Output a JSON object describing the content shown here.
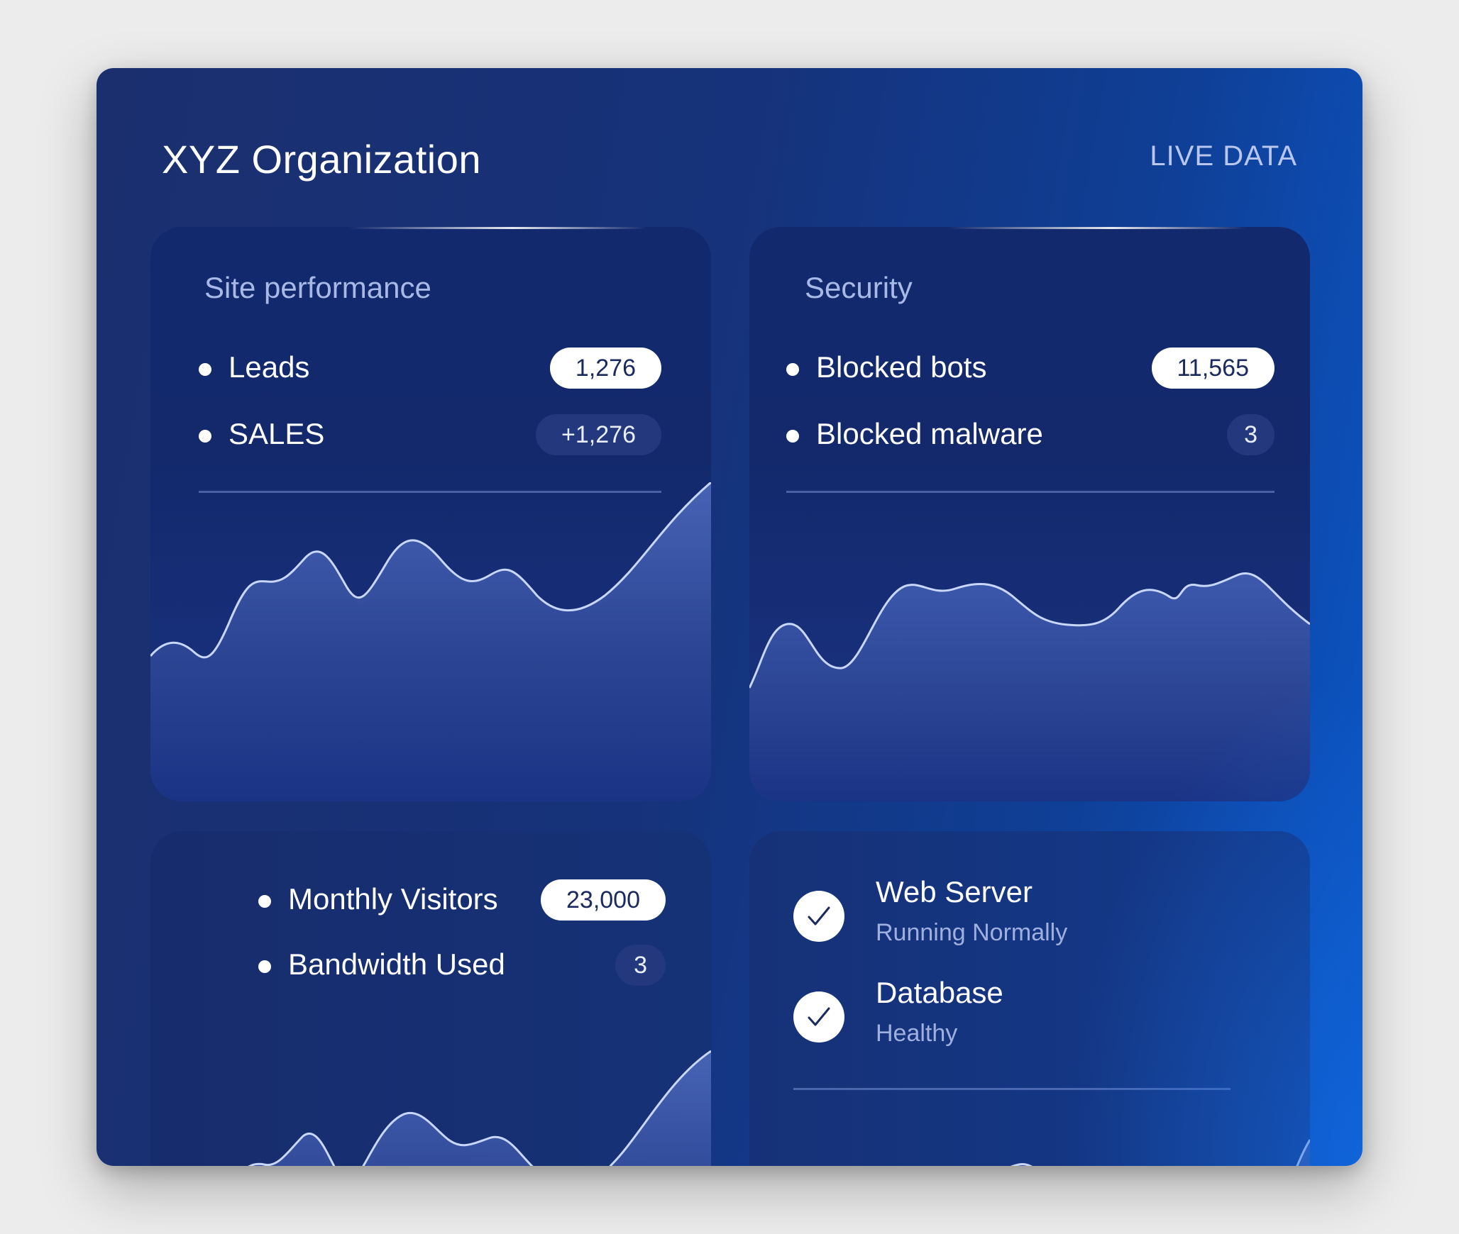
{
  "header": {
    "title": "XYZ Organization",
    "live_label": "LIVE DATA"
  },
  "site_performance": {
    "title": "Site performance",
    "metrics": [
      {
        "label": "Leads",
        "value": "1,276"
      },
      {
        "label": "SALES",
        "value": "+1,276"
      }
    ]
  },
  "security": {
    "title": "Security",
    "metrics": [
      {
        "label": "Blocked bots",
        "value": "11,565"
      },
      {
        "label": "Blocked malware",
        "value": "3"
      }
    ]
  },
  "traffic": {
    "metrics": [
      {
        "label": "Monthly Visitors",
        "value": "23,000"
      },
      {
        "label": "Bandwidth Used",
        "value": "3"
      }
    ]
  },
  "system_status": {
    "items": [
      {
        "name": "Web Server",
        "status": "Running Normally"
      },
      {
        "name": "Database",
        "status": "Healthy"
      }
    ]
  },
  "colors": {
    "background": "#ececec",
    "panel": "#16327a",
    "accent": "#0b57c9",
    "chart_fill": "#4a66b8",
    "chart_stroke": "#c9d6ff"
  }
}
